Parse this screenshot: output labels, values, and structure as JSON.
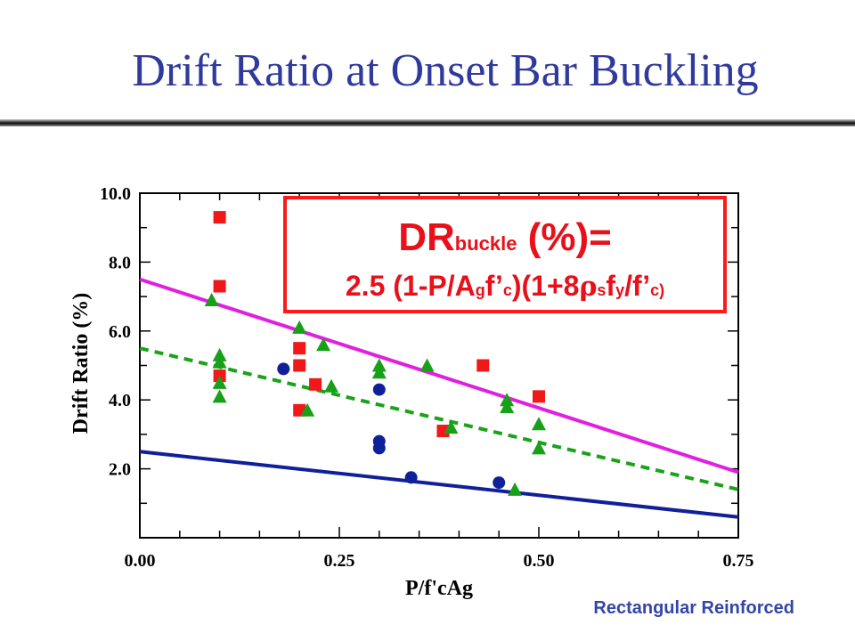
{
  "slide": {
    "title": "Drift Ratio at Onset Bar Buckling",
    "footer": "Rectangular Reinforced"
  },
  "equation": {
    "line1_main": "DR",
    "line1_sub": "buckle",
    "line1_rest": " (%)=",
    "line2_a": "2.5 (1-P/A",
    "line2_sub_g": "g",
    "line2_b": "f’",
    "line2_sub_c1": "c",
    "line2_c": ")(1+8",
    "line2_rho": "ρ",
    "line2_sub_s": "s",
    "line2_d": "f",
    "line2_sub_y": "y",
    "line2_e": "/f’",
    "line2_sub_c2": "c)"
  },
  "colors": {
    "title": "#2f3a9c",
    "magenta_line": "#e020e0",
    "green_dashed": "#1aa31a",
    "blue_line": "#10209a",
    "red_square": "#f01818",
    "green_triangle": "#18a018",
    "blue_circle": "#10209a",
    "equation": "#e8101a"
  },
  "chart_data": {
    "type": "scatter",
    "xlabel": "P/f'cAg",
    "ylabel": "Drift Ratio (%)",
    "xlim": [
      0,
      0.75
    ],
    "ylim": [
      0,
      10
    ],
    "x_ticks": [
      "0.00",
      "0.25",
      "0.50",
      "0.75"
    ],
    "x_tick_values": [
      0,
      0.25,
      0.5,
      0.75
    ],
    "y_ticks": [
      "2.0",
      "4.0",
      "6.0",
      "8.0",
      "10.0"
    ],
    "y_tick_values": [
      2,
      4,
      6,
      8,
      10
    ],
    "lines": [
      {
        "style": "solid",
        "color": "#e020e0",
        "x": [
          0,
          0.75
        ],
        "y": [
          7.5,
          1.9
        ]
      },
      {
        "style": "dashed",
        "color": "#1aa31a",
        "x": [
          0,
          0.75
        ],
        "y": [
          5.5,
          1.4
        ]
      },
      {
        "style": "solid",
        "color": "#10209a",
        "x": [
          0,
          0.75
        ],
        "y": [
          2.5,
          0.6
        ]
      }
    ],
    "series": [
      {
        "marker": "square",
        "color": "#f01818",
        "points": [
          [
            0.1,
            9.3
          ],
          [
            0.1,
            7.3
          ],
          [
            0.1,
            4.7
          ],
          [
            0.2,
            5.5
          ],
          [
            0.2,
            5.0
          ],
          [
            0.2,
            3.7
          ],
          [
            0.22,
            4.45
          ],
          [
            0.38,
            3.1
          ],
          [
            0.43,
            5.0
          ],
          [
            0.5,
            4.1
          ]
        ]
      },
      {
        "marker": "triangle",
        "color": "#18a018",
        "points": [
          [
            0.09,
            6.9
          ],
          [
            0.1,
            5.3
          ],
          [
            0.1,
            5.1
          ],
          [
            0.1,
            4.5
          ],
          [
            0.1,
            4.1
          ],
          [
            0.2,
            6.1
          ],
          [
            0.21,
            3.7
          ],
          [
            0.23,
            5.6
          ],
          [
            0.24,
            4.4
          ],
          [
            0.3,
            5.0
          ],
          [
            0.3,
            4.8
          ],
          [
            0.36,
            5.0
          ],
          [
            0.39,
            3.2
          ],
          [
            0.46,
            4.0
          ],
          [
            0.46,
            3.8
          ],
          [
            0.47,
            1.4
          ],
          [
            0.5,
            3.3
          ],
          [
            0.5,
            2.6
          ]
        ]
      },
      {
        "marker": "circle",
        "color": "#10209a",
        "points": [
          [
            0.18,
            4.9
          ],
          [
            0.3,
            4.3
          ],
          [
            0.3,
            2.8
          ],
          [
            0.3,
            2.6
          ],
          [
            0.34,
            1.75
          ],
          [
            0.45,
            1.6
          ]
        ]
      }
    ]
  }
}
